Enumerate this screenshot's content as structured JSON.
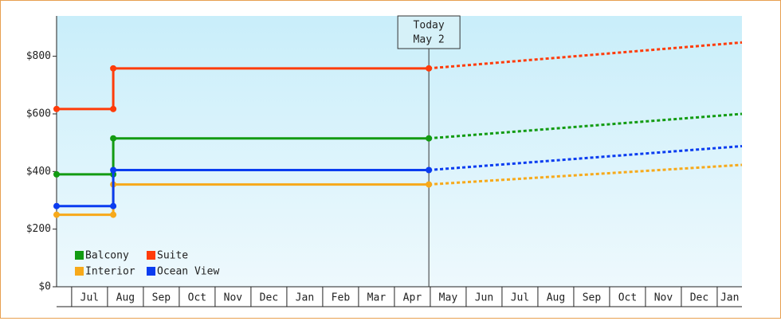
{
  "chart_data": {
    "type": "step-line",
    "ylim": [
      0,
      940
    ],
    "yticks": [
      {
        "value": 0,
        "label": "$0"
      },
      {
        "value": 200,
        "label": "$200"
      },
      {
        "value": 400,
        "label": "$400"
      },
      {
        "value": 600,
        "label": "$600"
      },
      {
        "value": 800,
        "label": "$800"
      }
    ],
    "xlim": [
      -0.42,
      18.69
    ],
    "xticks": [
      {
        "value": 0.5,
        "label": "Jul"
      },
      {
        "value": 1.5,
        "label": "Aug"
      },
      {
        "value": 2.5,
        "label": "Sep"
      },
      {
        "value": 3.5,
        "label": "Oct"
      },
      {
        "value": 4.5,
        "label": "Nov"
      },
      {
        "value": 5.5,
        "label": "Dec"
      },
      {
        "value": 6.5,
        "label": "Jan"
      },
      {
        "value": 7.5,
        "label": "Feb"
      },
      {
        "value": 8.5,
        "label": "Mar"
      },
      {
        "value": 9.5,
        "label": "Apr"
      },
      {
        "value": 10.5,
        "label": "May"
      },
      {
        "value": 11.5,
        "label": "Jun"
      },
      {
        "value": 12.5,
        "label": "Jul"
      },
      {
        "value": 13.5,
        "label": "Aug"
      },
      {
        "value": 14.5,
        "label": "Sep"
      },
      {
        "value": 15.5,
        "label": "Oct"
      },
      {
        "value": 16.5,
        "label": "Nov"
      },
      {
        "value": 17.5,
        "label": "Dec"
      },
      {
        "value": 18.35,
        "label": "Jan"
      }
    ],
    "today_marker": {
      "x": 9.96,
      "lines": [
        "Today",
        "May 2"
      ]
    },
    "series": [
      {
        "name": "Balcony",
        "color": "#129b12",
        "x": [
          -0.42,
          1.16,
          1.16,
          9.96
        ],
        "values": [
          390,
          390,
          515,
          515
        ],
        "projection": {
          "x": [
            9.96,
            18.69
          ],
          "values": [
            515,
            600
          ]
        }
      },
      {
        "name": "Suite",
        "color": "#ff3c0a",
        "x": [
          -0.42,
          1.16,
          1.16,
          9.96
        ],
        "values": [
          617,
          617,
          758,
          758
        ],
        "projection": {
          "x": [
            9.96,
            18.69
          ],
          "values": [
            758,
            848
          ]
        }
      },
      {
        "name": "Interior",
        "color": "#f7a91a",
        "x": [
          -0.42,
          1.16,
          1.16,
          9.96
        ],
        "values": [
          250,
          250,
          355,
          355
        ],
        "projection": {
          "x": [
            9.96,
            18.69
          ],
          "values": [
            355,
            423
          ]
        }
      },
      {
        "name": "Ocean View",
        "color": "#0a3cf0",
        "x": [
          -0.42,
          1.16,
          1.16,
          9.96
        ],
        "values": [
          280,
          280,
          405,
          405
        ],
        "projection": {
          "x": [
            9.96,
            18.69
          ],
          "values": [
            405,
            488
          ]
        }
      }
    ]
  }
}
